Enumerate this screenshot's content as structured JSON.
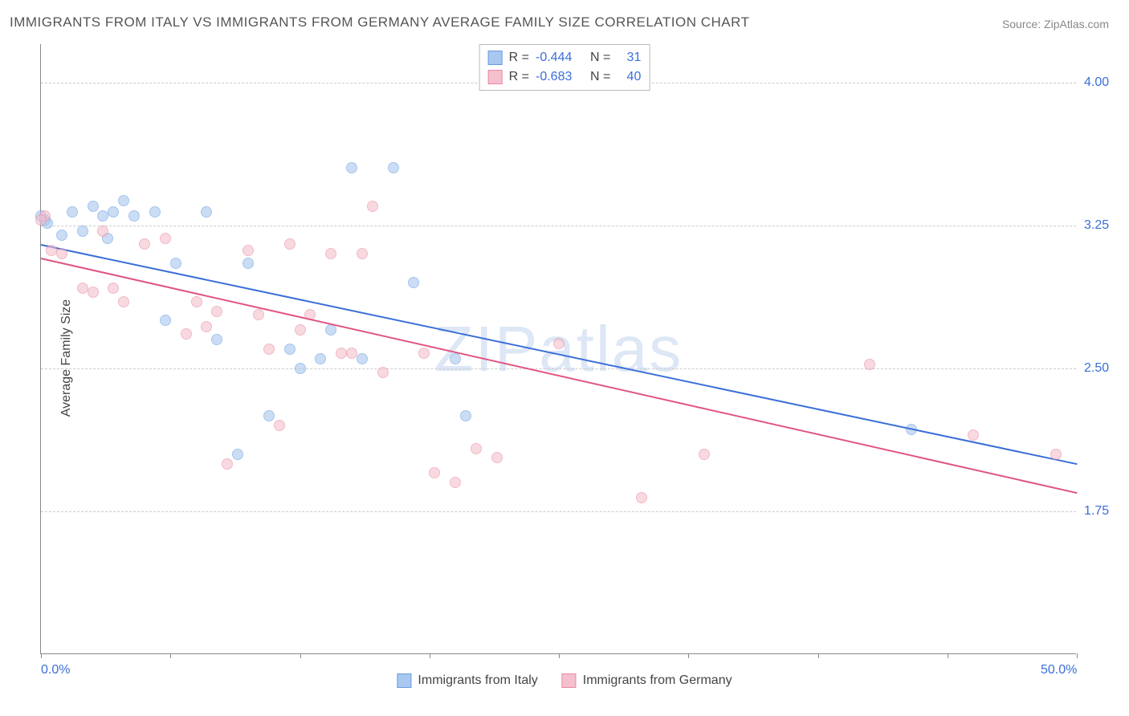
{
  "title": "IMMIGRANTS FROM ITALY VS IMMIGRANTS FROM GERMANY AVERAGE FAMILY SIZE CORRELATION CHART",
  "source": "Source: ZipAtlas.com",
  "watermark": "ZIPatlas",
  "ylabel": "Average Family Size",
  "chart": {
    "type": "scatter",
    "background_color": "#ffffff",
    "grid_color": "#cccccc",
    "axis_color": "#888888",
    "xlim": [
      0,
      50
    ],
    "ylim": [
      1.0,
      4.2
    ],
    "yticks": [
      1.75,
      2.5,
      3.25,
      4.0
    ],
    "ytick_labels": [
      "1.75",
      "2.50",
      "3.25",
      "4.00"
    ],
    "xtick_minor": [
      0,
      6.25,
      12.5,
      18.75,
      25,
      31.25,
      37.5,
      43.75,
      50
    ],
    "xtick_labels": [
      {
        "value": 0,
        "label": "0.0%"
      },
      {
        "value": 50,
        "label": "50.0%"
      }
    ],
    "value_color": "#3a6fd8",
    "label_color": "#444444",
    "point_radius": 7,
    "point_opacity": 0.6
  },
  "series": [
    {
      "name": "Immigrants from Italy",
      "color_fill": "#a8c8f0",
      "color_stroke": "#6a9de0",
      "R": "-0.444",
      "N": "31",
      "trend": {
        "x1": 0,
        "y1": 3.15,
        "x2": 50,
        "y2": 2.0,
        "color": "#3a6fd8"
      },
      "points": [
        [
          0.2,
          3.28
        ],
        [
          0.3,
          3.26
        ],
        [
          1.5,
          3.32
        ],
        [
          2.0,
          3.22
        ],
        [
          2.5,
          3.35
        ],
        [
          3.0,
          3.3
        ],
        [
          3.5,
          3.32
        ],
        [
          4.0,
          3.38
        ],
        [
          4.5,
          3.3
        ],
        [
          5.5,
          3.32
        ],
        [
          8.0,
          3.32
        ],
        [
          6.0,
          2.75
        ],
        [
          8.5,
          2.65
        ],
        [
          10.0,
          3.05
        ],
        [
          11.0,
          2.25
        ],
        [
          12.0,
          2.6
        ],
        [
          12.5,
          2.5
        ],
        [
          13.5,
          2.55
        ],
        [
          9.5,
          2.05
        ],
        [
          15.0,
          3.55
        ],
        [
          17.0,
          3.55
        ],
        [
          14.0,
          2.7
        ],
        [
          15.5,
          2.55
        ],
        [
          18.0,
          2.95
        ],
        [
          20.0,
          2.55
        ],
        [
          20.5,
          2.25
        ],
        [
          42.0,
          2.18
        ],
        [
          0.0,
          3.3
        ],
        [
          3.2,
          3.18
        ],
        [
          1.0,
          3.2
        ],
        [
          6.5,
          3.05
        ]
      ]
    },
    {
      "name": "Immigrants from Germany",
      "color_fill": "#f5c0cd",
      "color_stroke": "#e88aa5",
      "R": "-0.683",
      "N": "40",
      "trend": {
        "x1": 0,
        "y1": 3.08,
        "x2": 50,
        "y2": 1.85,
        "color": "#e05580"
      },
      "points": [
        [
          0.2,
          3.3
        ],
        [
          0.5,
          3.12
        ],
        [
          1.0,
          3.1
        ],
        [
          2.0,
          2.92
        ],
        [
          2.5,
          2.9
        ],
        [
          3.0,
          3.22
        ],
        [
          3.5,
          2.92
        ],
        [
          4.0,
          2.85
        ],
        [
          5.0,
          3.15
        ],
        [
          6.0,
          3.18
        ],
        [
          7.0,
          2.68
        ],
        [
          7.5,
          2.85
        ],
        [
          8.0,
          2.72
        ],
        [
          8.5,
          2.8
        ],
        [
          9.0,
          2.0
        ],
        [
          10.0,
          3.12
        ],
        [
          10.5,
          2.78
        ],
        [
          11.0,
          2.6
        ],
        [
          11.5,
          2.2
        ],
        [
          12.0,
          3.15
        ],
        [
          12.5,
          2.7
        ],
        [
          13.0,
          2.78
        ],
        [
          14.0,
          3.1
        ],
        [
          14.5,
          2.58
        ],
        [
          15.0,
          2.58
        ],
        [
          15.5,
          3.1
        ],
        [
          16.0,
          3.35
        ],
        [
          16.5,
          2.48
        ],
        [
          18.5,
          2.58
        ],
        [
          19.0,
          1.95
        ],
        [
          20.0,
          1.9
        ],
        [
          21.0,
          2.08
        ],
        [
          22.0,
          2.03
        ],
        [
          25.0,
          2.63
        ],
        [
          29.0,
          1.82
        ],
        [
          32.0,
          2.05
        ],
        [
          40.0,
          2.52
        ],
        [
          45.0,
          2.15
        ],
        [
          49.0,
          2.05
        ],
        [
          0.0,
          3.28
        ]
      ]
    }
  ],
  "legend_top": {
    "R_label": "R =",
    "N_label": "N ="
  }
}
